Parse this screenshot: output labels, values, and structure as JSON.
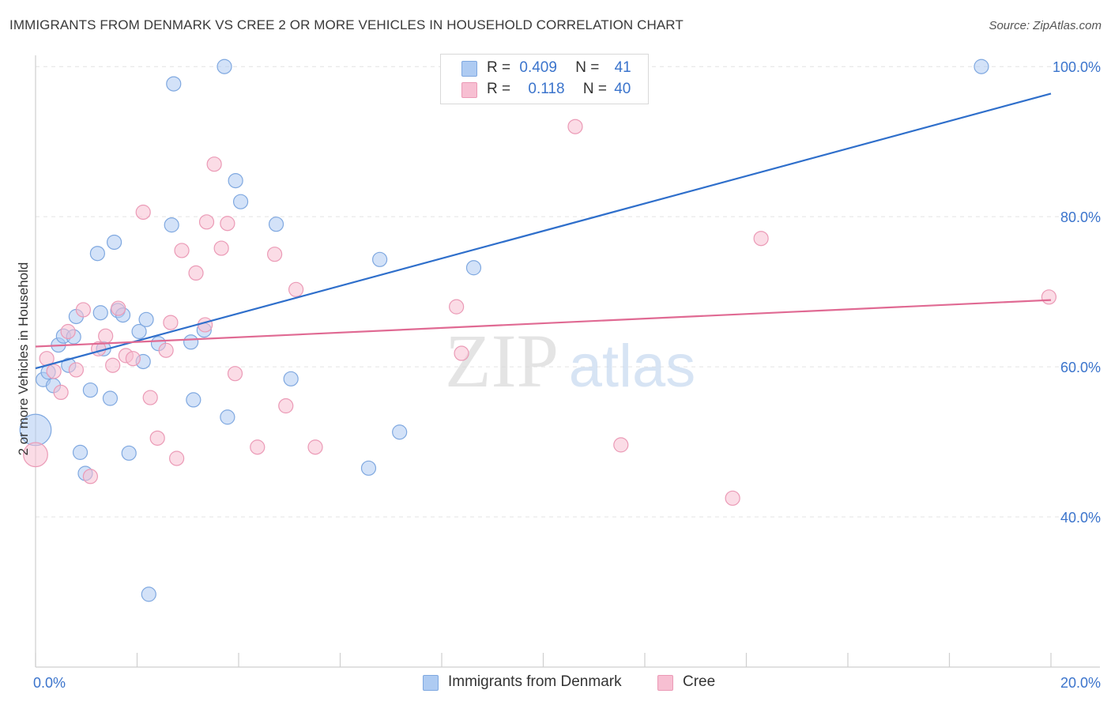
{
  "header": {
    "title": "IMMIGRANTS FROM DENMARK VS CREE 2 OR MORE VEHICLES IN HOUSEHOLD CORRELATION CHART",
    "source": "Source: ZipAtlas.com"
  },
  "watermark": {
    "zip": "ZIP",
    "atlas": "atlas"
  },
  "legend": {
    "rows": [
      {
        "r_label": "R =",
        "r_value": "0.409",
        "n_label": "N =",
        "n_value": "41"
      },
      {
        "r_label": "R =",
        "r_value": "0.118",
        "n_label": "N =",
        "n_value": "40"
      }
    ]
  },
  "colors": {
    "denmark_fill": "#aecbf2",
    "denmark_stroke": "#7fa8e0",
    "denmark_line": "#2f6fcb",
    "cree_fill": "#f7bfd2",
    "cree_stroke": "#eb9ab6",
    "cree_line": "#e06a93",
    "tick_label": "#3b74cc",
    "grid": "#e3e3e3"
  },
  "chart_data": {
    "type": "scatter",
    "xlabel": "",
    "ylabel": "2 or more Vehicles in Household",
    "xlim": [
      0,
      0.2
    ],
    "ylim": [
      20,
      101.5
    ],
    "x_tick_labels": [
      {
        "value": 0,
        "label": "0.0%"
      },
      {
        "value": 0.2,
        "label": "20.0%"
      }
    ],
    "y_tick_labels": [
      {
        "value": 40,
        "label": "40.0%"
      },
      {
        "value": 60,
        "label": "60.0%"
      },
      {
        "value": 80,
        "label": "80.0%"
      },
      {
        "value": 100,
        "label": "100.0%"
      }
    ],
    "x_minor_ticks": [
      0.02,
      0.04,
      0.06,
      0.08,
      0.1,
      0.12,
      0.14,
      0.16,
      0.18
    ],
    "y_gridlines": [
      40,
      60,
      80,
      100
    ],
    "grid": true,
    "legend_position": "top-center",
    "series": [
      {
        "name": "Immigrants from Denmark",
        "trend": {
          "x": [
            0,
            0.2
          ],
          "y": [
            59.8,
            96.4
          ]
        },
        "points": [
          {
            "x": 0.0,
            "y": 51.6,
            "s": 2.2
          },
          {
            "x": 0.0015,
            "y": 58.3
          },
          {
            "x": 0.0025,
            "y": 59.3
          },
          {
            "x": 0.0035,
            "y": 57.5
          },
          {
            "x": 0.0045,
            "y": 62.9
          },
          {
            "x": 0.0055,
            "y": 64.1
          },
          {
            "x": 0.0065,
            "y": 60.2
          },
          {
            "x": 0.0075,
            "y": 64.0
          },
          {
            "x": 0.008,
            "y": 66.7
          },
          {
            "x": 0.0088,
            "y": 48.6
          },
          {
            "x": 0.0098,
            "y": 45.8
          },
          {
            "x": 0.0108,
            "y": 56.9
          },
          {
            "x": 0.0122,
            "y": 75.1
          },
          {
            "x": 0.0128,
            "y": 67.2
          },
          {
            "x": 0.0134,
            "y": 62.4
          },
          {
            "x": 0.0147,
            "y": 55.8
          },
          {
            "x": 0.0155,
            "y": 76.6
          },
          {
            "x": 0.0162,
            "y": 67.5
          },
          {
            "x": 0.0172,
            "y": 66.9
          },
          {
            "x": 0.0184,
            "y": 48.5
          },
          {
            "x": 0.0204,
            "y": 64.7
          },
          {
            "x": 0.0212,
            "y": 60.7
          },
          {
            "x": 0.0218,
            "y": 66.3
          },
          {
            "x": 0.0223,
            "y": 29.7
          },
          {
            "x": 0.0242,
            "y": 63.1
          },
          {
            "x": 0.0268,
            "y": 78.9
          },
          {
            "x": 0.0272,
            "y": 97.7
          },
          {
            "x": 0.0306,
            "y": 63.3
          },
          {
            "x": 0.0311,
            "y": 55.6
          },
          {
            "x": 0.0332,
            "y": 64.9
          },
          {
            "x": 0.0372,
            "y": 100.0
          },
          {
            "x": 0.0378,
            "y": 53.3
          },
          {
            "x": 0.0394,
            "y": 84.8
          },
          {
            "x": 0.0404,
            "y": 82.0
          },
          {
            "x": 0.0474,
            "y": 79.0
          },
          {
            "x": 0.0503,
            "y": 58.4
          },
          {
            "x": 0.0656,
            "y": 46.5
          },
          {
            "x": 0.0678,
            "y": 74.3
          },
          {
            "x": 0.0717,
            "y": 51.3
          },
          {
            "x": 0.0863,
            "y": 73.2
          },
          {
            "x": 0.1863,
            "y": 100.0
          }
        ]
      },
      {
        "name": "Cree",
        "trend": {
          "x": [
            0,
            0.2
          ],
          "y": [
            62.7,
            68.9
          ]
        },
        "points": [
          {
            "x": 0.0,
            "y": 48.3,
            "s": 1.7
          },
          {
            "x": 0.0022,
            "y": 61.1
          },
          {
            "x": 0.0036,
            "y": 59.4
          },
          {
            "x": 0.005,
            "y": 56.6
          },
          {
            "x": 0.0064,
            "y": 64.7
          },
          {
            "x": 0.008,
            "y": 59.6
          },
          {
            "x": 0.0094,
            "y": 67.6
          },
          {
            "x": 0.0108,
            "y": 45.4
          },
          {
            "x": 0.0124,
            "y": 62.4
          },
          {
            "x": 0.0138,
            "y": 64.1
          },
          {
            "x": 0.0152,
            "y": 60.2
          },
          {
            "x": 0.0163,
            "y": 67.8
          },
          {
            "x": 0.0178,
            "y": 61.5
          },
          {
            "x": 0.0192,
            "y": 61.1
          },
          {
            "x": 0.0212,
            "y": 80.6
          },
          {
            "x": 0.0226,
            "y": 55.9
          },
          {
            "x": 0.024,
            "y": 50.5
          },
          {
            "x": 0.0257,
            "y": 62.2
          },
          {
            "x": 0.0266,
            "y": 65.9
          },
          {
            "x": 0.0278,
            "y": 47.8
          },
          {
            "x": 0.0288,
            "y": 75.5
          },
          {
            "x": 0.0316,
            "y": 72.5
          },
          {
            "x": 0.0334,
            "y": 65.6
          },
          {
            "x": 0.0337,
            "y": 79.3
          },
          {
            "x": 0.0352,
            "y": 87.0
          },
          {
            "x": 0.0366,
            "y": 75.8
          },
          {
            "x": 0.0378,
            "y": 79.1
          },
          {
            "x": 0.0393,
            "y": 59.1
          },
          {
            "x": 0.0437,
            "y": 49.3
          },
          {
            "x": 0.0471,
            "y": 75.0
          },
          {
            "x": 0.0493,
            "y": 54.8
          },
          {
            "x": 0.0513,
            "y": 70.3
          },
          {
            "x": 0.0551,
            "y": 49.3
          },
          {
            "x": 0.0829,
            "y": 68.0
          },
          {
            "x": 0.0839,
            "y": 61.8
          },
          {
            "x": 0.1063,
            "y": 92.0
          },
          {
            "x": 0.1153,
            "y": 49.6
          },
          {
            "x": 0.1373,
            "y": 42.5
          },
          {
            "x": 0.1429,
            "y": 77.1
          },
          {
            "x": 0.1996,
            "y": 69.3
          }
        ]
      }
    ]
  }
}
